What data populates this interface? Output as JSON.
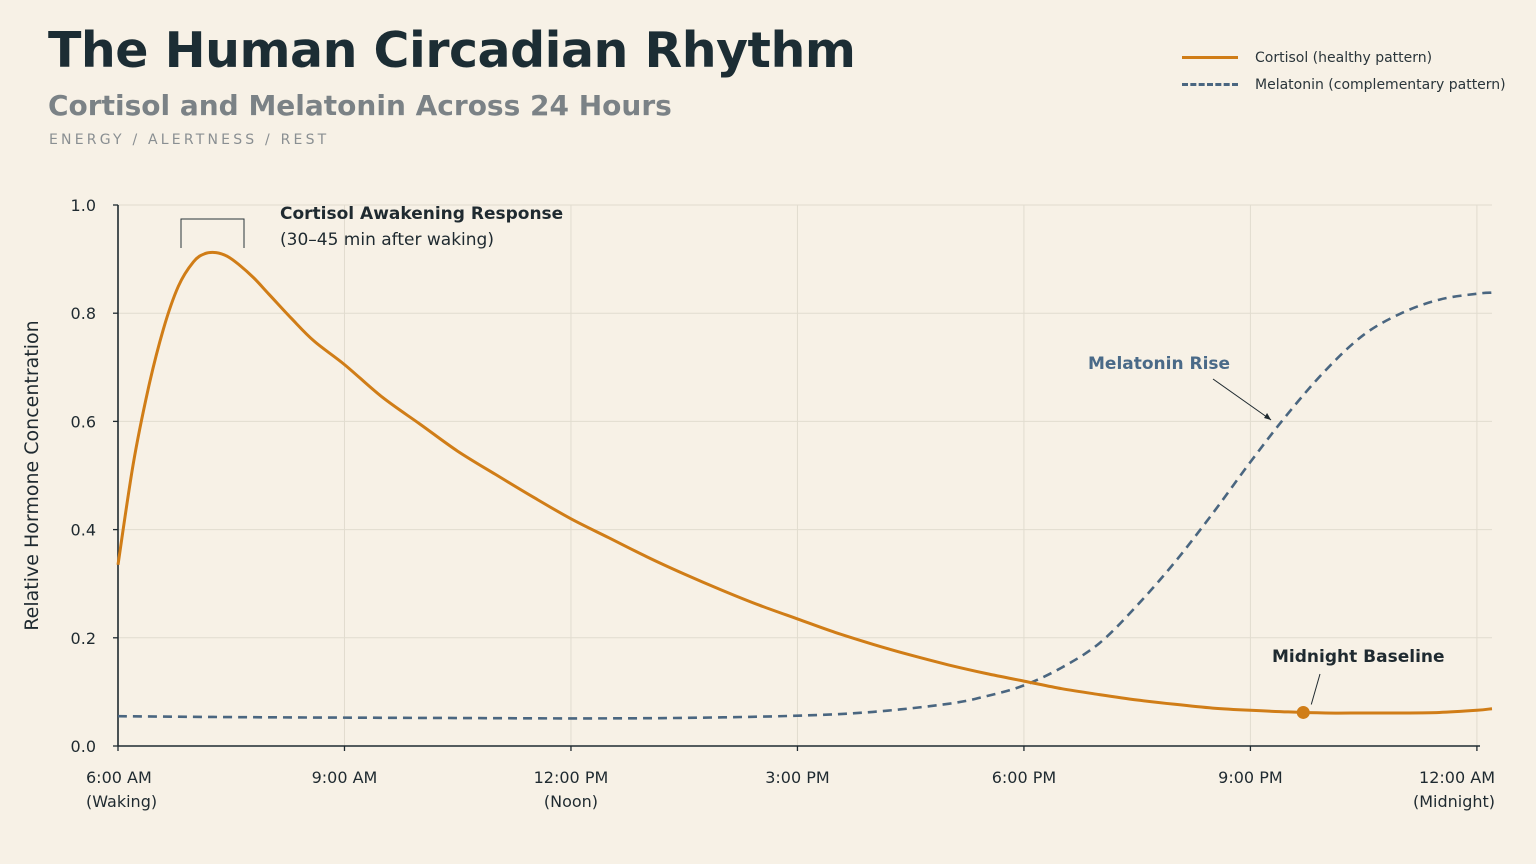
{
  "header": {
    "title": "The Human Circadian Rhythm",
    "subtitle": "Cortisol and Melatonin Across 24 Hours",
    "tagline": "ENERGY / ALERTNESS / REST"
  },
  "legend": {
    "items": [
      {
        "label": "Cortisol (healthy pattern)",
        "style": "solid",
        "color": "#d07d17"
      },
      {
        "label": "Melatonin (complementary pattern)",
        "style": "dashed",
        "color": "#4a6680"
      }
    ]
  },
  "chart_data": {
    "type": "line",
    "title": "The Human Circadian Rhythm",
    "subtitle": "Cortisol and Melatonin Across 24 Hours",
    "xlabel": "",
    "ylabel": "Relative Hormone Concentration",
    "xlim": [
      6,
      24.2
    ],
    "ylim": [
      0,
      1.0
    ],
    "x_units": "hour of day",
    "grid": true,
    "legend_position": "top-right",
    "y_ticks": [
      {
        "value": 0.0,
        "label": "0.0"
      },
      {
        "value": 0.2,
        "label": "0.2"
      },
      {
        "value": 0.4,
        "label": "0.4"
      },
      {
        "value": 0.6,
        "label": "0.6"
      },
      {
        "value": 0.8,
        "label": "0.8"
      },
      {
        "value": 1.0,
        "label": "1.0"
      }
    ],
    "x_ticks": [
      {
        "value": 6,
        "lines": [
          "6:00 AM",
          "(Waking)"
        ]
      },
      {
        "value": 9,
        "lines": [
          "9:00 AM"
        ]
      },
      {
        "value": 12,
        "lines": [
          "12:00 PM",
          "(Noon)"
        ]
      },
      {
        "value": 15,
        "lines": [
          "3:00 PM"
        ]
      },
      {
        "value": 18,
        "lines": [
          "6:00 PM"
        ]
      },
      {
        "value": 21,
        "lines": [
          "9:00 PM"
        ]
      },
      {
        "value": 24,
        "lines": [
          "12:00 AM",
          "(Midnight)"
        ]
      }
    ],
    "series": [
      {
        "name": "Cortisol (healthy pattern)",
        "color": "#d07d17",
        "style": "solid",
        "x": [
          6.0,
          6.2,
          6.4,
          6.6,
          6.8,
          7.0,
          7.15,
          7.3,
          7.45,
          7.6,
          7.8,
          8.0,
          8.3,
          8.6,
          9.0,
          9.5,
          10.0,
          10.5,
          11.0,
          11.5,
          12.0,
          12.5,
          13.0,
          13.5,
          14.0,
          14.5,
          15.0,
          15.5,
          16.0,
          16.5,
          17.0,
          17.5,
          18.0,
          18.5,
          19.0,
          19.5,
          20.0,
          20.5,
          21.0,
          21.5,
          22.0,
          22.5,
          23.0,
          23.5,
          24.0,
          24.2
        ],
        "y": [
          0.335,
          0.52,
          0.66,
          0.77,
          0.85,
          0.895,
          0.91,
          0.912,
          0.905,
          0.89,
          0.865,
          0.835,
          0.79,
          0.748,
          0.705,
          0.645,
          0.595,
          0.545,
          0.502,
          0.46,
          0.42,
          0.385,
          0.35,
          0.318,
          0.288,
          0.26,
          0.235,
          0.21,
          0.188,
          0.168,
          0.15,
          0.134,
          0.12,
          0.106,
          0.095,
          0.085,
          0.077,
          0.07,
          0.066,
          0.063,
          0.061,
          0.061,
          0.061,
          0.062,
          0.066,
          0.069
        ]
      },
      {
        "name": "Melatonin (complementary pattern)",
        "color": "#4a6680",
        "style": "dashed",
        "x": [
          6.0,
          8.0,
          10.0,
          12.0,
          13.5,
          15.0,
          16.0,
          17.0,
          17.5,
          18.0,
          18.5,
          19.0,
          19.5,
          20.0,
          20.5,
          21.0,
          21.5,
          22.0,
          22.5,
          23.0,
          23.5,
          24.0,
          24.2
        ],
        "y": [
          0.055,
          0.053,
          0.052,
          0.051,
          0.052,
          0.056,
          0.063,
          0.078,
          0.092,
          0.112,
          0.145,
          0.19,
          0.26,
          0.34,
          0.43,
          0.525,
          0.615,
          0.695,
          0.76,
          0.8,
          0.825,
          0.836,
          0.838
        ]
      }
    ],
    "annotations": [
      {
        "text": "Cortisol Awakening Response",
        "sub": "(30–45 min after waking)",
        "x": 7.3,
        "y": 0.912
      },
      {
        "text": "Melatonin Rise",
        "x": 21.3,
        "y": 0.61
      },
      {
        "text": "Midnight Baseline",
        "x": 21.7,
        "y": 0.062
      }
    ]
  }
}
